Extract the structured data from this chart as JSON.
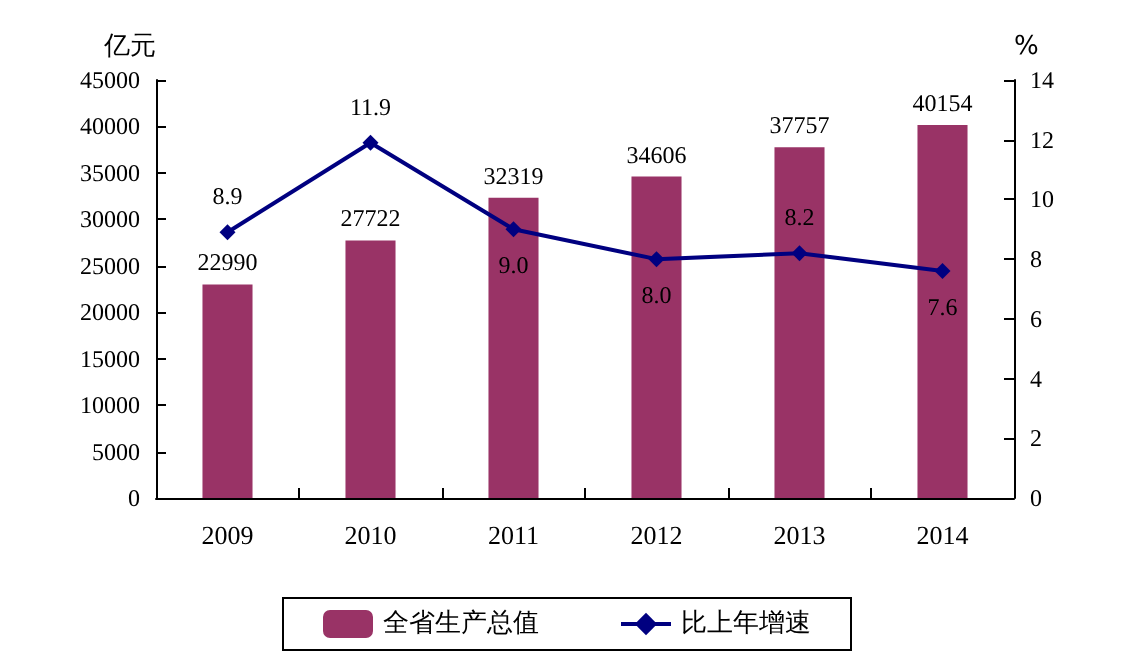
{
  "chart_data": {
    "type": "bar",
    "categories": [
      "2009",
      "2010",
      "2011",
      "2012",
      "2013",
      "2014"
    ],
    "series": [
      {
        "name": "全省生产总值",
        "color": "#993366",
        "values": [
          22990,
          27722,
          32319,
          34606,
          37757,
          40154
        ],
        "value_labels": [
          "22990",
          "27722",
          "32319",
          "34606",
          "37757",
          "40154"
        ]
      },
      {
        "type": "line",
        "name": "比上年增速",
        "color": "#000080",
        "axis": "y2",
        "values": [
          8.9,
          11.9,
          9.0,
          8.0,
          8.2,
          7.6
        ],
        "value_labels": [
          "8.9",
          "11.9",
          "9.0",
          "8.0",
          "8.2",
          "7.6"
        ]
      }
    ],
    "ylabel": "亿元",
    "y2label": "%",
    "ylim": [
      0,
      45000
    ],
    "yticks": [
      0,
      5000,
      10000,
      15000,
      20000,
      25000,
      30000,
      35000,
      40000,
      45000
    ],
    "y2lim": [
      0,
      14
    ],
    "y2ticks": [
      0,
      2,
      4,
      6,
      8,
      10,
      12,
      14
    ],
    "marker": "diamond",
    "grid": false,
    "legend": "bottom"
  }
}
